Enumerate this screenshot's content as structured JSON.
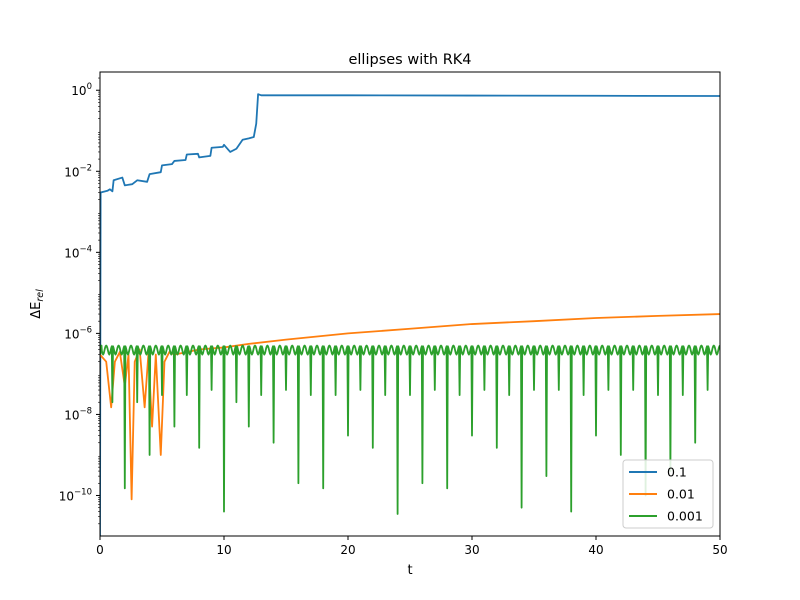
{
  "chart_data": {
    "type": "line",
    "title": "ellipses with RK4",
    "xlabel": "t",
    "ylabel": "ΔE_rel",
    "xlim": [
      0,
      50
    ],
    "ylim_log10": [
      -11,
      0.45
    ],
    "yscale": "log",
    "grid": false,
    "legend_position": "lower-right",
    "x_ticks": [
      0,
      10,
      20,
      30,
      40,
      50
    ],
    "y_ticks": [
      {
        "exp": 0,
        "label": "10",
        "sup": "0"
      },
      {
        "exp": -2,
        "label": "10",
        "sup": "−2"
      },
      {
        "exp": -4,
        "label": "10",
        "sup": "−4"
      },
      {
        "exp": -6,
        "label": "10",
        "sup": "−6"
      },
      {
        "exp": -8,
        "label": "10",
        "sup": "−8"
      },
      {
        "exp": -10,
        "label": "10",
        "sup": "−10"
      }
    ],
    "series": [
      {
        "name": "0.1",
        "color": "#1f77b4",
        "points": [
          [
            0,
            1e-11
          ],
          [
            0.05,
            0.003
          ],
          [
            0.6,
            0.0033
          ],
          [
            0.8,
            0.0036
          ],
          [
            1.0,
            0.0032
          ],
          [
            1.1,
            0.006
          ],
          [
            1.8,
            0.007
          ],
          [
            2.0,
            0.0045
          ],
          [
            2.6,
            0.0048
          ],
          [
            3.0,
            0.006
          ],
          [
            3.8,
            0.0055
          ],
          [
            4.0,
            0.0085
          ],
          [
            4.9,
            0.0095
          ],
          [
            5.0,
            0.014
          ],
          [
            5.8,
            0.015
          ],
          [
            6.0,
            0.018
          ],
          [
            6.9,
            0.019
          ],
          [
            7.0,
            0.026
          ],
          [
            7.9,
            0.027
          ],
          [
            8.0,
            0.022
          ],
          [
            8.9,
            0.024
          ],
          [
            9.0,
            0.038
          ],
          [
            9.9,
            0.04
          ],
          [
            10.0,
            0.045
          ],
          [
            10.5,
            0.03
          ],
          [
            11.0,
            0.036
          ],
          [
            11.5,
            0.06
          ],
          [
            12.0,
            0.065
          ],
          [
            12.4,
            0.07
          ],
          [
            12.6,
            0.15
          ],
          [
            12.75,
            0.8
          ],
          [
            13.0,
            0.75
          ],
          [
            20,
            0.75
          ],
          [
            30,
            0.74
          ],
          [
            40,
            0.73
          ],
          [
            50,
            0.72
          ]
        ]
      },
      {
        "name": "0.01",
        "color": "#ff7f0e",
        "points": [
          [
            0,
            3e-07
          ],
          [
            0.5,
            2e-07
          ],
          [
            0.9,
            1.5e-08
          ],
          [
            1.2,
            2e-07
          ],
          [
            1.6,
            3.5e-07
          ],
          [
            2.0,
            5e-08
          ],
          [
            2.3,
            3e-07
          ],
          [
            2.55,
            8e-11
          ],
          [
            2.8,
            2e-07
          ],
          [
            3.2,
            4e-07
          ],
          [
            3.6,
            1.5e-08
          ],
          [
            3.9,
            3e-07
          ],
          [
            4.2,
            5e-09
          ],
          [
            4.5,
            3e-07
          ],
          [
            4.9,
            1e-09
          ],
          [
            5.2,
            2e-07
          ],
          [
            5.6,
            3.5e-07
          ],
          [
            6,
            3e-07
          ],
          [
            8,
            4e-07
          ],
          [
            10,
            4.5e-07
          ],
          [
            12,
            5.5e-07
          ],
          [
            15,
            7e-07
          ],
          [
            20,
            1e-06
          ],
          [
            25,
            1.3e-06
          ],
          [
            30,
            1.7e-06
          ],
          [
            35,
            2e-06
          ],
          [
            40,
            2.4e-06
          ],
          [
            45,
            2.7e-06
          ],
          [
            50,
            3e-06
          ]
        ]
      },
      {
        "name": "0.001",
        "color": "#2ca02c",
        "period": 1.0,
        "baseline": 5e-07,
        "baseline_low": 3e-07,
        "dips": [
          [
            1,
            2e-08
          ],
          [
            2,
            1.5e-10
          ],
          [
            3,
            2e-08
          ],
          [
            4,
            1e-09
          ],
          [
            5,
            3e-08
          ],
          [
            6,
            5e-09
          ],
          [
            7,
            3e-08
          ],
          [
            8,
            1.5e-09
          ],
          [
            9,
            4e-08
          ],
          [
            10,
            4e-11
          ],
          [
            11,
            2e-08
          ],
          [
            12,
            5e-09
          ],
          [
            13,
            3e-08
          ],
          [
            14,
            2e-09
          ],
          [
            15,
            4e-08
          ],
          [
            16,
            2e-10
          ],
          [
            17,
            3e-08
          ],
          [
            18,
            1.5e-10
          ],
          [
            19,
            3e-08
          ],
          [
            20,
            3e-09
          ],
          [
            21,
            4e-08
          ],
          [
            22,
            1.5e-09
          ],
          [
            23,
            3e-08
          ],
          [
            24,
            3.5e-11
          ],
          [
            25,
            3e-08
          ],
          [
            26,
            2e-10
          ],
          [
            27,
            4e-08
          ],
          [
            28,
            1.5e-10
          ],
          [
            29,
            3e-08
          ],
          [
            30,
            3e-09
          ],
          [
            31,
            4e-08
          ],
          [
            32,
            1.5e-09
          ],
          [
            33,
            3e-08
          ],
          [
            34,
            5e-11
          ],
          [
            35,
            4e-08
          ],
          [
            36,
            3e-10
          ],
          [
            37,
            4e-08
          ],
          [
            38,
            4e-11
          ],
          [
            39,
            3e-08
          ],
          [
            40,
            3e-09
          ],
          [
            41,
            4e-08
          ],
          [
            42,
            1e-09
          ],
          [
            43,
            4e-08
          ],
          [
            44,
            1e-10
          ],
          [
            45,
            3e-08
          ],
          [
            46,
            4e-10
          ],
          [
            47,
            3e-08
          ],
          [
            48,
            2e-09
          ],
          [
            49,
            4e-08
          ]
        ]
      }
    ]
  }
}
